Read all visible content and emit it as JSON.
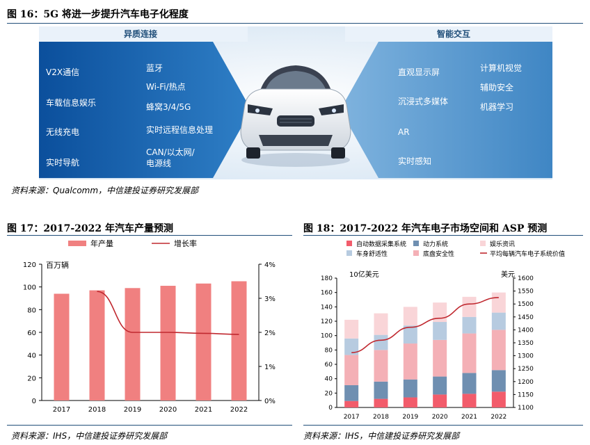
{
  "fig16": {
    "title": "图 16：5G 将进一步提升汽车电子化程度",
    "left_header": "异质连接",
    "right_header": "智能交互",
    "left_col1": [
      "V2X通信",
      "车载信息娱乐",
      "无线充电",
      "实时导航"
    ],
    "left_col2": [
      "蓝牙",
      "Wi-Fi/热点",
      "蜂窝3/4/5G",
      "实时远程信息处理",
      "CAN/以太网/",
      "电源线"
    ],
    "right_col1": [
      "直观显示屏",
      "沉浸式多媒体",
      "AR",
      "实时感知"
    ],
    "right_col2": [
      "计算机视觉",
      "辅助安全",
      "机器学习"
    ],
    "source": "资料来源：Qualcomm，中信建投证券研究发展部",
    "colors": {
      "left_dark": "#0b4f9c",
      "left_light": "#2f7fc6",
      "right_dark": "#3f86c4",
      "right_light": "#7fb3de"
    }
  },
  "fig17": {
    "title": "图 17：2017-2022 年汽车产量预测",
    "source": "资料来源：IHS，中信建投证券研究发展部"
  },
  "fig18": {
    "title": "图 18：2017-2022 年汽车电子市场空间和 ASP 预测",
    "source": "资料来源：IHS，中信建投证券研究发展部"
  },
  "chart_data": [
    {
      "id": "fig17",
      "type": "bar+line",
      "categories": [
        "2017",
        "2018",
        "2019",
        "2020",
        "2021",
        "2022"
      ],
      "series": [
        {
          "name": "年产量",
          "kind": "bar",
          "axis": "left",
          "color": "#f08080",
          "values": [
            94,
            97,
            99,
            101,
            103,
            105
          ]
        },
        {
          "name": "增长率",
          "kind": "line",
          "axis": "right",
          "color": "#c0282f",
          "values": [
            null,
            3.2,
            2.0,
            2.0,
            1.97,
            1.94
          ]
        }
      ],
      "left_unit": "百万辆",
      "ylim_left": [
        0,
        120
      ],
      "yticks_left": [
        "0",
        "20",
        "40",
        "60",
        "80",
        "100",
        "120"
      ],
      "ylim_right": [
        0,
        4
      ],
      "yticks_right": [
        "0%",
        "1%",
        "2%",
        "3%",
        "4%"
      ]
    },
    {
      "id": "fig18",
      "type": "stacked-bar+line",
      "categories": [
        "2017",
        "2018",
        "2019",
        "2020",
        "2021",
        "2022"
      ],
      "series": [
        {
          "name": "自动数据采集系统",
          "kind": "bar",
          "color": "#f25c6b",
          "values": [
            9,
            12,
            14,
            18,
            19,
            22
          ]
        },
        {
          "name": "动力系统",
          "kind": "bar",
          "color": "#6f8fb1",
          "values": [
            22,
            24,
            25,
            25,
            29,
            30
          ]
        },
        {
          "name": "底盘安全性",
          "kind": "bar",
          "color": "#f4b0b6",
          "values": [
            42,
            44,
            50,
            51,
            55,
            56
          ]
        },
        {
          "name": "车身舒适性",
          "kind": "bar",
          "color": "#b7cbe0",
          "values": [
            23,
            21,
            25,
            25,
            23,
            24
          ]
        },
        {
          "name": "娱乐资讯",
          "kind": "bar",
          "color": "#f9d5d8",
          "values": [
            26,
            30,
            26,
            27,
            28,
            28
          ]
        },
        {
          "name": "平均每辆汽车电子系统价值",
          "kind": "line",
          "axis": "right",
          "color": "#c0282f",
          "values": [
            1312,
            1360,
            1410,
            1445,
            1500,
            1525
          ]
        }
      ],
      "legend_order": [
        "自动数据采集系统",
        "动力系统",
        "娱乐资讯",
        "车身舒适性",
        "底盘安全性",
        "平均每辆汽车电子系统价值"
      ],
      "left_unit": "10亿美元",
      "right_unit": "美元",
      "ylim_left": [
        0,
        180
      ],
      "yticks_left": [
        "0",
        "20",
        "40",
        "60",
        "80",
        "100",
        "120",
        "140",
        "160",
        "180"
      ],
      "ylim_right": [
        1100,
        1600
      ],
      "yticks_right": [
        "1100",
        "1150",
        "1200",
        "1250",
        "1300",
        "1350",
        "1400",
        "1450",
        "1500",
        "1550",
        "1600"
      ]
    }
  ]
}
